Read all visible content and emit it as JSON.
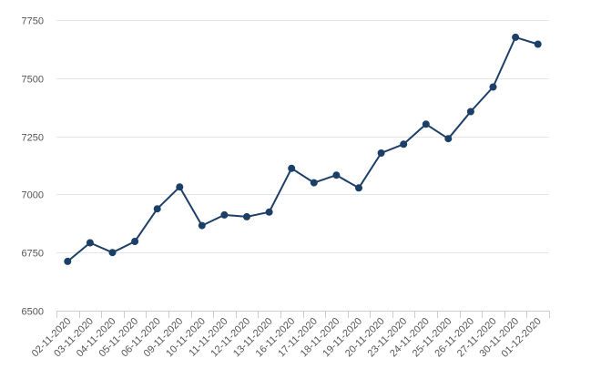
{
  "chart_data": {
    "type": "line",
    "title": "",
    "xlabel": "",
    "ylabel": "",
    "categories": [
      "02-11-2020",
      "03-11-2020",
      "04-11-2020",
      "05-11-2020",
      "06-11-2020",
      "09-11-2020",
      "10-11-2020",
      "11-11-2020",
      "12-11-2020",
      "13-11-2020",
      "16-11-2020",
      "17-11-2020",
      "18-11-2020",
      "19-11-2020",
      "20-11-2020",
      "23-11-2020",
      "24-11-2020",
      "25-11-2020",
      "26-11-2020",
      "27-11-2020",
      "30-11-2020",
      "01-12-2020"
    ],
    "series": [
      {
        "values": [
          6712,
          6792,
          6750,
          6798,
          6938,
          7032,
          6866,
          6912,
          6904,
          6924,
          7112,
          7050,
          7083,
          7028,
          7178,
          7216,
          7302,
          7240,
          7356,
          7462,
          7676,
          7646
        ]
      }
    ],
    "ylim": [
      6500,
      7750
    ],
    "yticks": [
      6500,
      6750,
      7000,
      7250,
      7500,
      7750
    ],
    "grid": true,
    "legend": "none",
    "colors": {
      "line": "#1b3f66",
      "marker": "#1b3f66",
      "grid": "#e6e6e6",
      "axis": "#cccccc",
      "text": "#555555"
    }
  }
}
